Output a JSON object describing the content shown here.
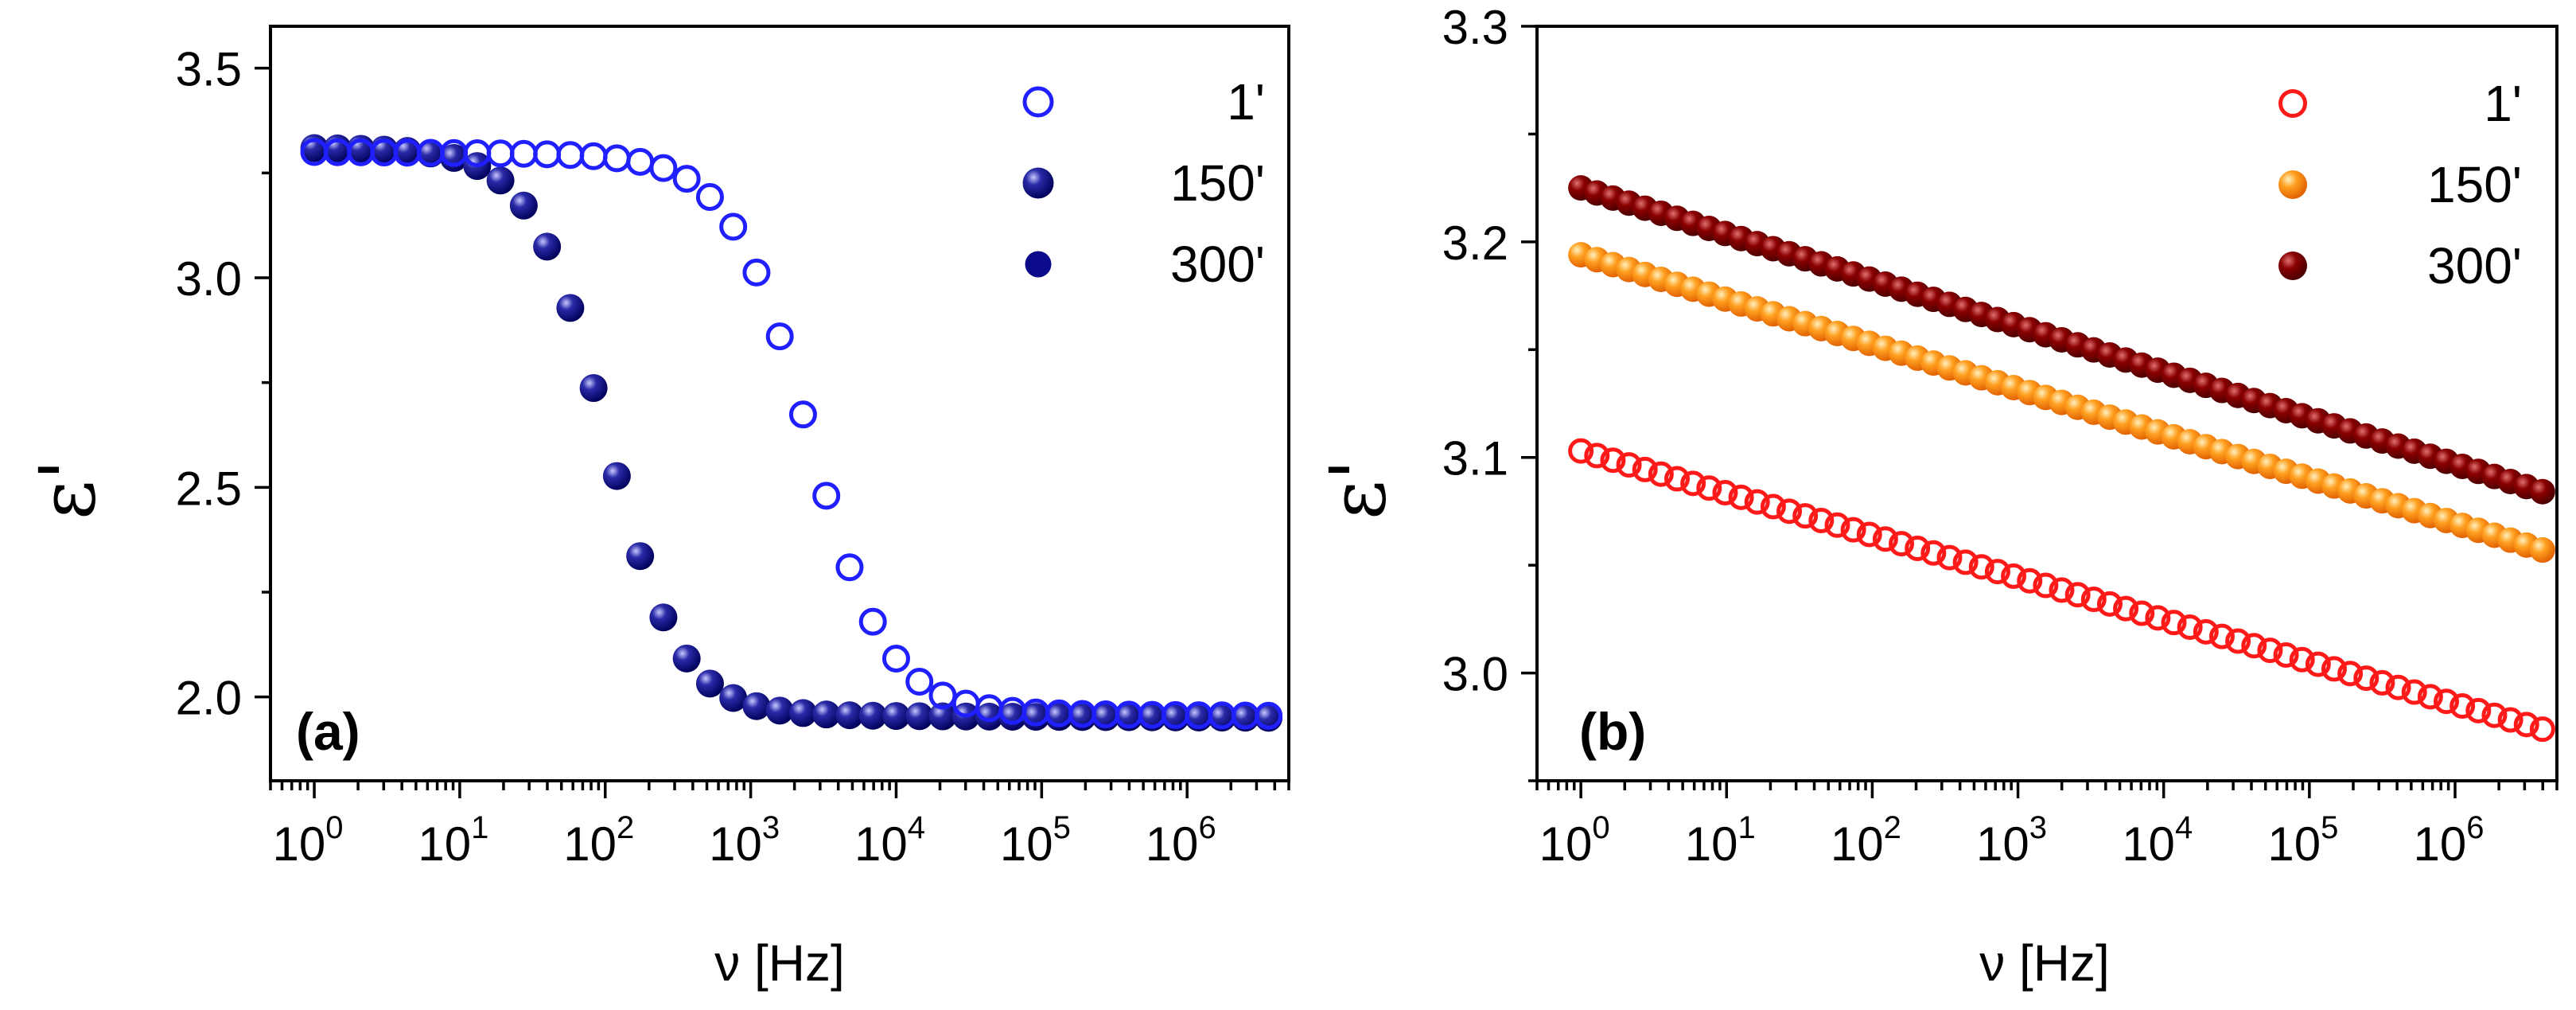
{
  "chart_data": [
    {
      "type": "scatter",
      "panel_label": "(a)",
      "xlabel": "ν  [Hz]",
      "ylabel": "ε'",
      "xscale": "log",
      "xlim": [
        0.5,
        5000000
      ],
      "ylim": [
        1.8,
        3.6
      ],
      "x_ticks": [
        {
          "value": 1,
          "base": "10",
          "exp": "0"
        },
        {
          "value": 10,
          "base": "10",
          "exp": "1"
        },
        {
          "value": 100,
          "base": "10",
          "exp": "2"
        },
        {
          "value": 1000,
          "base": "10",
          "exp": "3"
        },
        {
          "value": 10000,
          "base": "10",
          "exp": "4"
        },
        {
          "value": 100000,
          "base": "10",
          "exp": "5"
        },
        {
          "value": 1000000,
          "base": "10",
          "exp": "6"
        }
      ],
      "y_ticks": [
        {
          "value": 2.0,
          "label": "2.0"
        },
        {
          "value": 2.5,
          "label": "2.5"
        },
        {
          "value": 3.0,
          "label": "3.0"
        },
        {
          "value": 3.5,
          "label": "3.5"
        }
      ],
      "y_minor": [
        1.75,
        2.25,
        2.75,
        3.25
      ],
      "legend_position": "top-right",
      "series": [
        {
          "name": "1'",
          "style": "open",
          "color": "#1f1fff",
          "eps_hi": 3.3,
          "eps_lo": 1.97,
          "f_c": 2500,
          "width": 1.6,
          "lo_drift": 0.015
        },
        {
          "name": "150'",
          "style": "sphere",
          "color": "#00007f",
          "eps_hi": 3.31,
          "eps_lo": 1.96,
          "f_c": 100,
          "width": 1.7,
          "lo_drift": 0.01
        },
        {
          "name": "300'",
          "style": "filled",
          "color": "#0a0a8a",
          "eps_hi": 3.31,
          "eps_lo": 1.965,
          "f_c": 100,
          "width": 1.7,
          "lo_drift": 0.01
        }
      ]
    },
    {
      "type": "scatter",
      "panel_label": "(b)",
      "xlabel": "ν  [Hz]",
      "ylabel": "ε'",
      "xscale": "log",
      "xlim": [
        0.5,
        5000000
      ],
      "ylim": [
        2.95,
        3.3
      ],
      "x_ticks": [
        {
          "value": 1,
          "base": "10",
          "exp": "0"
        },
        {
          "value": 10,
          "base": "10",
          "exp": "1"
        },
        {
          "value": 100,
          "base": "10",
          "exp": "2"
        },
        {
          "value": 1000,
          "base": "10",
          "exp": "3"
        },
        {
          "value": 10000,
          "base": "10",
          "exp": "4"
        },
        {
          "value": 100000,
          "base": "10",
          "exp": "5"
        },
        {
          "value": 1000000,
          "base": "10",
          "exp": "6"
        }
      ],
      "y_ticks": [
        {
          "value": 3.0,
          "label": "3.0"
        },
        {
          "value": 3.1,
          "label": "3.1"
        },
        {
          "value": 3.2,
          "label": "3.2"
        },
        {
          "value": 3.3,
          "label": "3.3"
        }
      ],
      "y_minor": [
        2.95,
        3.05,
        3.15,
        3.25
      ],
      "legend_position": "top-right",
      "series": [
        {
          "name": "1'",
          "style": "open",
          "color": "#ff1a1a",
          "y_start": 3.103,
          "y_end": 2.972
        },
        {
          "name": "150'",
          "style": "sphere",
          "color": "#ff8c00",
          "y_start": 3.194,
          "y_end": 3.055
        },
        {
          "name": "300'",
          "style": "sphere",
          "color": "#7f0000",
          "y_start": 3.225,
          "y_end": 3.082
        }
      ]
    }
  ]
}
